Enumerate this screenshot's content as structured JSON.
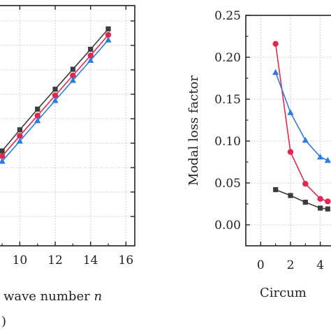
{
  "chart_data": [
    {
      "type": "line",
      "xlabel": "wave number",
      "xlabel_var": "n",
      "panel_tag": ")",
      "ylabel": "",
      "xlim": [
        8.8,
        16.5
      ],
      "ylim": [
        0,
        1
      ],
      "x_ticks": [
        "10",
        "12",
        "14",
        "16"
      ],
      "grid": true,
      "series": [
        {
          "marker": "square",
          "color": "#3c3c3c",
          "x": [
            9,
            10,
            11,
            12,
            13,
            14,
            15
          ],
          "y": [
            0.395,
            0.483,
            0.569,
            0.652,
            0.735,
            0.818,
            0.903
          ]
        },
        {
          "marker": "circle",
          "color": "#e0284f",
          "x": [
            9,
            10,
            11,
            12,
            13,
            14,
            15
          ],
          "y": [
            0.373,
            0.458,
            0.542,
            0.626,
            0.709,
            0.792,
            0.878
          ]
        },
        {
          "marker": "triangle",
          "color": "#2f7be0",
          "x": [
            9,
            10,
            11,
            12,
            13,
            14,
            15
          ],
          "y": [
            0.352,
            0.436,
            0.521,
            0.605,
            0.689,
            0.772,
            0.857
          ]
        }
      ]
    },
    {
      "type": "line",
      "xlabel": "Circum",
      "ylabel": "Modal loss factor",
      "xlim": [
        -1,
        5
      ],
      "ylim": [
        -0.025,
        0.25
      ],
      "x_ticks": [
        "0",
        "2",
        "4"
      ],
      "y_ticks": [
        "0.00",
        "0.05",
        "0.10",
        "0.15",
        "0.20",
        "0.25"
      ],
      "grid": true,
      "series": [
        {
          "marker": "square",
          "color": "#3c3c3c",
          "x": [
            1,
            2,
            3,
            4,
            4.5
          ],
          "y": [
            0.042,
            0.035,
            0.027,
            0.02,
            0.019
          ]
        },
        {
          "marker": "circle",
          "color": "#e0284f",
          "x": [
            1,
            2,
            3,
            4,
            4.5
          ],
          "y": [
            0.216,
            0.087,
            0.049,
            0.031,
            0.028
          ]
        },
        {
          "marker": "triangle",
          "color": "#2f7be0",
          "x": [
            1,
            2,
            3,
            4,
            4.5
          ],
          "y": [
            0.182,
            0.134,
            0.101,
            0.081,
            0.077
          ]
        }
      ]
    }
  ]
}
